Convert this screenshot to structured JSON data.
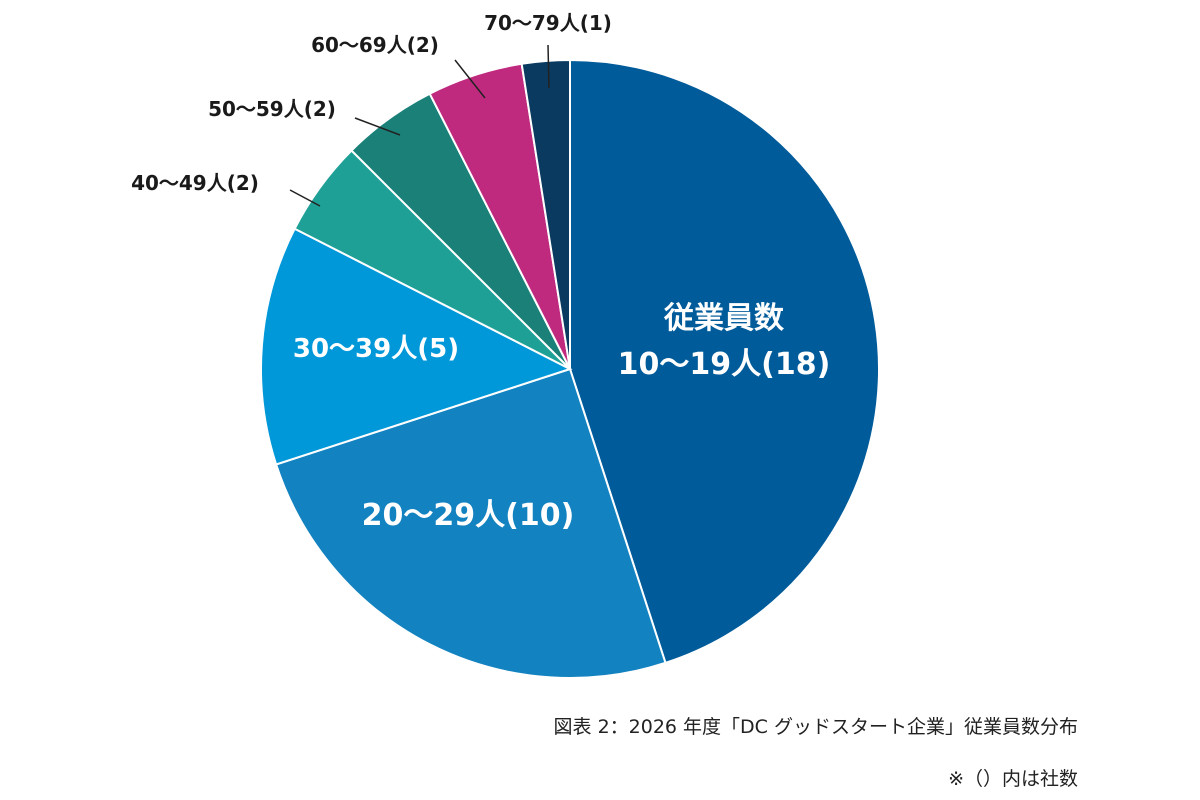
{
  "chart_data": {
    "type": "pie",
    "start": "top",
    "direction": "clockwise",
    "slices": [
      {
        "label": "従業員数",
        "label2": "10〜19人(18)",
        "category": "10〜19人",
        "value": 18,
        "color": "#005b9a",
        "label_position": "inside"
      },
      {
        "label": "20〜29人(10)",
        "category": "20〜29人",
        "value": 10,
        "color": "#1282c0",
        "label_position": "inside"
      },
      {
        "label": "30〜39人(5)",
        "category": "30〜39人",
        "value": 5,
        "color": "#0098d8",
        "label_position": "inside"
      },
      {
        "label": "40〜49人(2)",
        "category": "40〜49人",
        "value": 2,
        "color": "#1fa096",
        "label_position": "outside"
      },
      {
        "label": "50〜59人(2)",
        "category": "50〜59人",
        "value": 2,
        "color": "#1a8078",
        "label_position": "outside"
      },
      {
        "label": "60〜69人(2)",
        "category": "60〜69人",
        "value": 2,
        "color": "#bf2a7f",
        "label_position": "outside"
      },
      {
        "label": "70〜79人(1)",
        "category": "70〜79人",
        "value": 1,
        "color": "#0a3a60",
        "label_position": "outside"
      }
    ]
  },
  "caption": "図表 2：2026 年度「DC グッドスタート企業」従業員数分布",
  "note": "※（）内は社数"
}
